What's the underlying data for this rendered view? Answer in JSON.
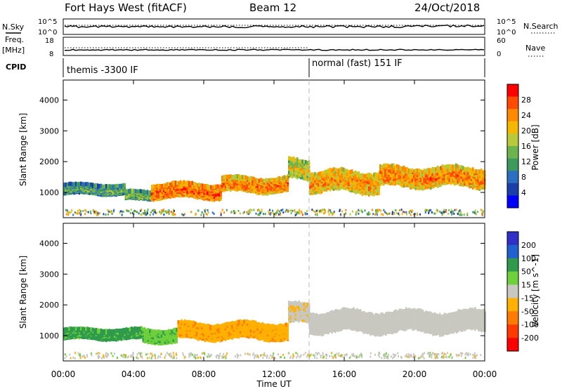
{
  "header": {
    "station": "Fort Hays West (fitACF)",
    "beam": "Beam 12",
    "date": "24/Oct/2018"
  },
  "summary": {
    "nsky_label": "N.Sky",
    "nsearch_label": "N.Search",
    "freq_label": "Freq.",
    "freq_unit": "[MHz]",
    "nave_label": "Nave",
    "cpid_label": "CPID",
    "noise_ticks": [
      "10^5",
      "10^0"
    ],
    "freq_ticks": [
      "18",
      "8"
    ],
    "nave_ticks": [
      "60",
      "0"
    ],
    "cpid_segments": [
      {
        "label": "themis -3300 IF",
        "start_hour": 0
      },
      {
        "label": "normal (fast) 151 IF",
        "start_hour": 14
      }
    ]
  },
  "colors": {
    "power": [
      "#0000ff",
      "#1a3fa8",
      "#2c6fc0",
      "#3c9a5c",
      "#6db34e",
      "#b9c93a",
      "#f5b800",
      "#ff8a00",
      "#ff4a00",
      "#ff0000"
    ],
    "velocity": [
      "#3030c8",
      "#2060d0",
      "#2f9a4c",
      "#6ed03a",
      "#c8c8c0",
      "#ffb000",
      "#ff7a00",
      "#ff3a00",
      "#ff0000"
    ]
  },
  "chart_data": [
    {
      "type": "heatmap",
      "name": "power",
      "xlabel": "",
      "ylabel": "Slant Range [km]",
      "xlim": [
        0,
        24
      ],
      "ylim": [
        180,
        4650
      ],
      "yticks": [
        1000,
        2000,
        3000,
        4000
      ],
      "colorbar_label": "Power [dB]",
      "colorbar_ticks": [
        "4",
        "8",
        "12",
        "16",
        "20",
        "24",
        "28"
      ],
      "colorbar_range": [
        0,
        32
      ],
      "echo_bands": [
        {
          "start_hour": 0.0,
          "end_hour": 3.5,
          "center_km": 1100,
          "width_km": 300,
          "level": 14
        },
        {
          "start_hour": 3.5,
          "end_hour": 5.0,
          "center_km": 900,
          "width_km": 250,
          "level": 16
        },
        {
          "start_hour": 5.0,
          "end_hour": 9.0,
          "center_km": 1050,
          "width_km": 450,
          "level": 27
        },
        {
          "start_hour": 9.0,
          "end_hour": 12.8,
          "center_km": 1250,
          "width_km": 450,
          "level": 25
        },
        {
          "start_hour": 12.8,
          "end_hour": 14.0,
          "center_km": 1750,
          "width_km": 600,
          "level": 20
        },
        {
          "start_hour": 14.0,
          "end_hour": 18.0,
          "center_km": 1350,
          "width_km": 650,
          "level": 24
        },
        {
          "start_hour": 18.0,
          "end_hour": 24.0,
          "center_km": 1500,
          "width_km": 600,
          "level": 25
        }
      ]
    },
    {
      "type": "heatmap",
      "name": "velocity",
      "xlabel": "Time UT",
      "ylabel": "Slant Range [km]",
      "xlim": [
        0,
        24
      ],
      "ylim": [
        180,
        4650
      ],
      "xticks": [
        "00:00",
        "04:00",
        "08:00",
        "12:00",
        "16:00",
        "20:00",
        "00:00"
      ],
      "yticks": [
        1000,
        2000,
        3000,
        4000
      ],
      "colorbar_label": "Velocity [m s^-1]",
      "colorbar_ticks": [
        "200",
        "100",
        "50",
        "15",
        "-15",
        "-50",
        "-100",
        "-200"
      ],
      "echo_bands": [
        {
          "start_hour": 0.0,
          "end_hour": 4.5,
          "center_km": 1050,
          "width_km": 300,
          "velocity": 60
        },
        {
          "start_hour": 4.5,
          "end_hour": 6.5,
          "center_km": 1000,
          "width_km": 400,
          "velocity": 40
        },
        {
          "start_hour": 6.5,
          "end_hour": 12.8,
          "center_km": 1150,
          "width_km": 500,
          "velocity": -40
        },
        {
          "start_hour": 12.8,
          "end_hour": 14.0,
          "center_km": 1700,
          "width_km": 600,
          "velocity": -10
        },
        {
          "start_hour": 14.0,
          "end_hour": 24.0,
          "center_km": 1450,
          "width_km": 650,
          "velocity": 0
        }
      ]
    }
  ]
}
